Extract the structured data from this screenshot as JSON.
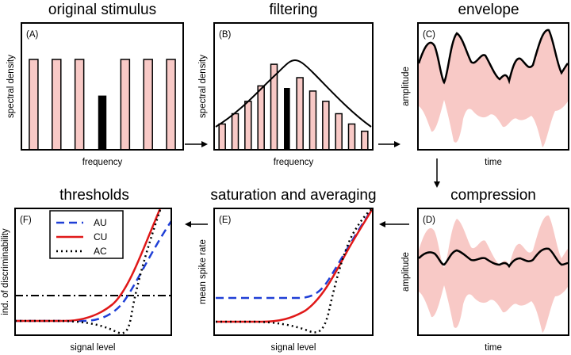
{
  "panels": {
    "A": {
      "label": "(A)",
      "title": "original stimulus",
      "xlabel": "frequency",
      "ylabel": "spectral density"
    },
    "B": {
      "label": "(B)",
      "title": "filtering",
      "xlabel": "frequency",
      "ylabel": "spectral density"
    },
    "C": {
      "label": "(C)",
      "title": "envelope",
      "xlabel": "time",
      "ylabel": "amplitude"
    },
    "D": {
      "label": "(D)",
      "title": "compression",
      "xlabel": "time",
      "ylabel": "amplitude"
    },
    "E": {
      "label": "(E)",
      "title": "saturation and averaging",
      "xlabel": "signal level",
      "ylabel": "mean spike rate"
    },
    "F": {
      "label": "(F)",
      "title": "thresholds",
      "xlabel": "signal level",
      "ylabel": "ind. of discriminability"
    }
  },
  "legend": [
    {
      "label": "AU",
      "style": "dashed",
      "color": "#1f3fd6"
    },
    {
      "label": "CU",
      "style": "solid",
      "color": "#e01818"
    },
    {
      "label": "AC",
      "style": "dotted",
      "color": "#000000"
    }
  ],
  "colors": {
    "pink": "#f8c9c6",
    "signal": "#000000",
    "threshold": "#000000"
  },
  "chart_data": [
    {
      "type": "bar",
      "title": "original stimulus",
      "xlabel": "frequency",
      "ylabel": "spectral density",
      "categories": [
        "1",
        "2",
        "3",
        "4",
        "5",
        "6",
        "7"
      ],
      "values": [
        1,
        1,
        1,
        0.6,
        1,
        1,
        1
      ],
      "signal_index": 3
    },
    {
      "type": "bar",
      "title": "filtering",
      "xlabel": "frequency",
      "ylabel": "spectral density",
      "categories": [
        "1",
        "2",
        "3",
        "4",
        "5",
        "6",
        "7",
        "8",
        "9",
        "10",
        "11",
        "12"
      ],
      "values": [
        0.25,
        0.35,
        0.47,
        0.62,
        0.83,
        0.6,
        0.7,
        0.57,
        0.47,
        0.35,
        0.25,
        0.18
      ],
      "signal_index": 5
    },
    {
      "type": "line",
      "title": "thresholds",
      "xlabel": "signal level",
      "ylabel": "ind. of discriminability",
      "series": [
        {
          "name": "AU"
        },
        {
          "name": "CU"
        },
        {
          "name": "AC"
        }
      ],
      "threshold": "dash-dot horizontal line"
    }
  ]
}
